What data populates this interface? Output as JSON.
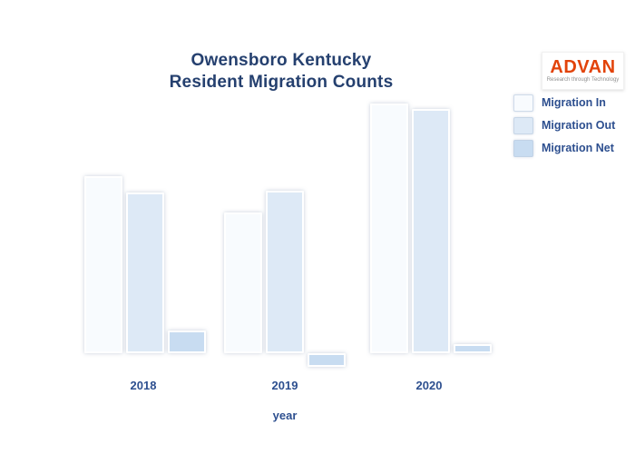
{
  "title": {
    "line1": "Owensboro Kentucky",
    "line2": "Resident Migration Counts"
  },
  "logo": {
    "name": "ADVAN",
    "tagline": "Research through Technology",
    "brand_color": "#e2430a"
  },
  "legend": {
    "position": "top-right",
    "items": [
      {
        "label": "Migration In",
        "color": "#f8fbfe"
      },
      {
        "label": "Migration Out",
        "color": "#dde9f6"
      },
      {
        "label": "Migration Net",
        "color": "#c8dcf1"
      }
    ]
  },
  "x_axis": {
    "label": "year",
    "tick_labels": [
      "2018",
      "2019",
      "2020"
    ]
  },
  "chart_data": {
    "type": "bar",
    "title": "Owensboro Kentucky Resident Migration Counts",
    "categories": [
      "2018",
      "2019",
      "2020"
    ],
    "series": [
      {
        "name": "Migration In",
        "color": "#f8fbfe",
        "values": [
          1950,
          1550,
          2750
        ]
      },
      {
        "name": "Migration Out",
        "color": "#dde9f6",
        "values": [
          1770,
          1790,
          2690
        ]
      },
      {
        "name": "Migration Net",
        "color": "#c8dcf1",
        "values": [
          250,
          -150,
          100
        ]
      }
    ],
    "xlabel": "year",
    "ylabel": "",
    "ylim": [
      -200,
      2800
    ],
    "y_axis_labels_visible": false,
    "grid": false,
    "legend_position": "top-right",
    "text_color": "#2d4f8f"
  }
}
